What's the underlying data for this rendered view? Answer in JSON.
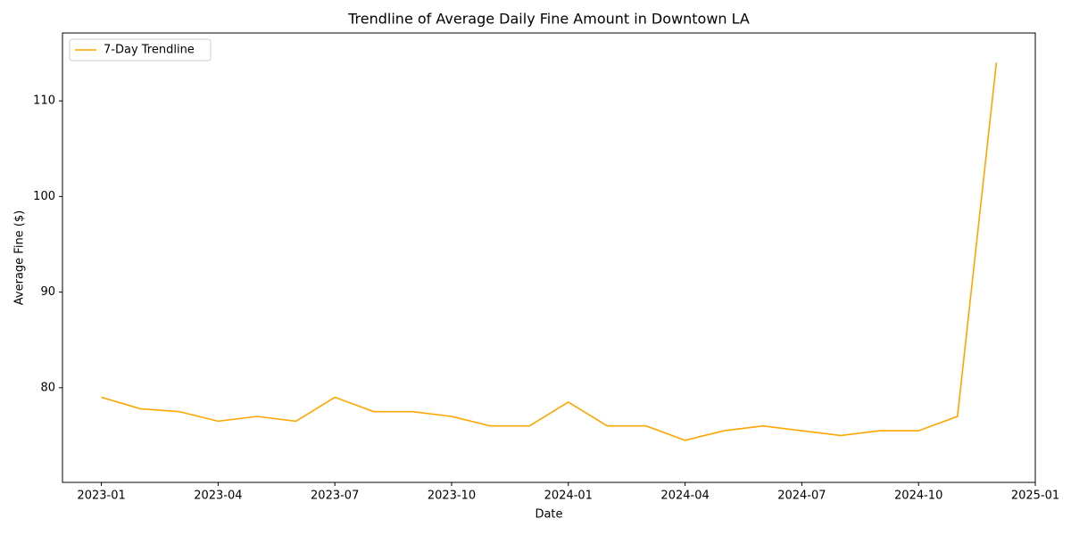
{
  "chart_data": {
    "type": "line",
    "title": "Trendline of Average Daily Fine Amount in Downtown LA",
    "xlabel": "Date",
    "ylabel": "Average Fine ($)",
    "x": [
      "2023-01",
      "2023-02",
      "2023-03",
      "2023-04",
      "2023-05",
      "2023-06",
      "2023-07",
      "2023-08",
      "2023-09",
      "2023-10",
      "2023-11",
      "2023-12",
      "2024-01",
      "2024-02",
      "2024-03",
      "2024-04",
      "2024-05",
      "2024-06",
      "2024-07",
      "2024-08",
      "2024-09",
      "2024-10",
      "2024-11",
      "2024-12"
    ],
    "series": [
      {
        "name": "7-Day Trendline",
        "color": "#ffa500",
        "values": [
          79,
          77.8,
          77.5,
          76.5,
          77,
          76.5,
          79,
          77.5,
          77.5,
          77,
          76,
          76,
          78.5,
          76,
          76,
          74.5,
          75.5,
          76,
          75.5,
          75,
          75.5,
          75.5,
          77,
          114
        ]
      }
    ],
    "xlim": [
      "2022-12",
      "2025-01"
    ],
    "xticks": [
      "2023-01",
      "2023-04",
      "2023-07",
      "2023-10",
      "2024-01",
      "2024-04",
      "2024-07",
      "2024-10",
      "2025-01"
    ],
    "ylim": [
      70.1,
      117.1
    ],
    "yticks": [
      80,
      90,
      100,
      110
    ],
    "grid": false,
    "legend": "upper left"
  }
}
